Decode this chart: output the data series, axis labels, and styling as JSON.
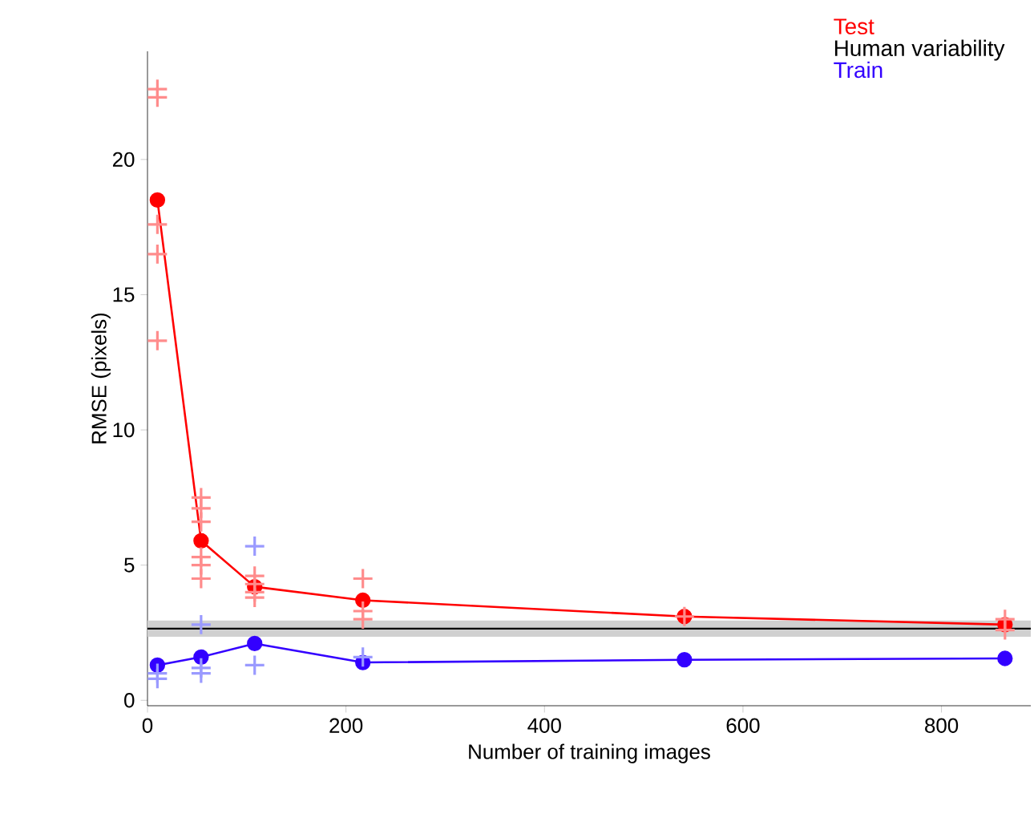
{
  "chart_data": {
    "type": "line",
    "xlabel": "Number of training images",
    "ylabel": "RMSE (pixels)",
    "xlim": [
      0,
      890
    ],
    "ylim": [
      -0.2,
      24
    ],
    "xticks": [
      0,
      200,
      400,
      600,
      800
    ],
    "yticks": [
      0,
      5,
      10,
      15,
      20
    ],
    "legend": "top right",
    "grid": false,
    "series": [
      {
        "name": "Test",
        "color": "#ff0000",
        "marker": "circle",
        "x": [
          10,
          54,
          108,
          217,
          541,
          864
        ],
        "values": [
          18.5,
          5.9,
          4.2,
          3.7,
          3.1,
          2.8
        ]
      },
      {
        "type": "scatter",
        "color": "#ff8c8c",
        "marker": "cross",
        "x": [
          10,
          10,
          10,
          10,
          10,
          54,
          54,
          54,
          54,
          54,
          54,
          108,
          108,
          108,
          108,
          217,
          217,
          217,
          541,
          864,
          864
        ],
        "values": [
          22.6,
          22.3,
          17.6,
          16.5,
          13.3,
          7.5,
          7.1,
          6.6,
          5.3,
          5.0,
          4.5,
          4.6,
          4.3,
          4.0,
          3.8,
          4.5,
          3.3,
          3.0,
          3.1,
          3.0,
          2.6
        ]
      },
      {
        "name": "Train",
        "color": "#3300ff",
        "marker": "circle",
        "x": [
          10,
          54,
          108,
          217,
          541,
          864
        ],
        "values": [
          1.3,
          1.6,
          2.1,
          1.4,
          1.5,
          1.55
        ]
      },
      {
        "type": "scatter",
        "color": "#9a9aff",
        "marker": "cross",
        "x": [
          10,
          10,
          54,
          54,
          54,
          108,
          108,
          217
        ],
        "values": [
          1.0,
          0.8,
          2.8,
          1.2,
          1.0,
          5.7,
          1.3,
          1.6
        ]
      }
    ],
    "ref_lines": [
      {
        "axis": "y",
        "value": 2.65,
        "label": "Human variability",
        "color": "#000000"
      }
    ],
    "bands": [
      {
        "axis": "y",
        "from": 2.35,
        "to": 2.95,
        "color": "#d0d0d0"
      }
    ]
  }
}
